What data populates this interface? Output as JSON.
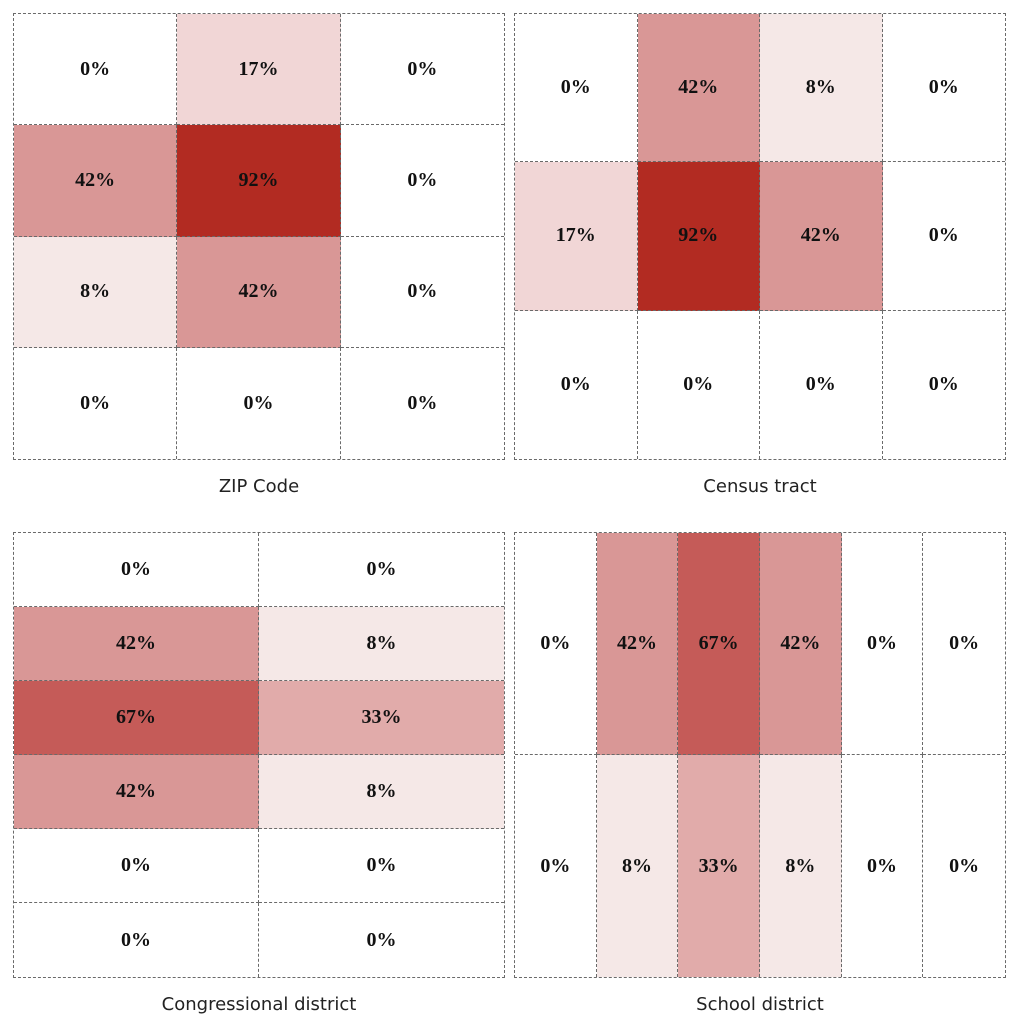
{
  "colors": {
    "v0": "#ffffff",
    "v8": "#f5e8e7",
    "v17": "#f1d6d6",
    "v33": "#e1abaa",
    "v42": "#d99796",
    "v67": "#c55b58",
    "v92": "#b22b22",
    "grid": "#6a6a6a",
    "text": "#111111"
  },
  "chart_data": [
    {
      "type": "heatmap",
      "title": "ZIP Code",
      "rows": 4,
      "cols": 3,
      "values": [
        [
          0,
          17,
          0
        ],
        [
          42,
          92,
          0
        ],
        [
          8,
          42,
          0
        ],
        [
          0,
          0,
          0
        ]
      ],
      "column_fill": false
    },
    {
      "type": "heatmap",
      "title": "Census tract",
      "rows": 3,
      "cols": 4,
      "values": [
        [
          0,
          42,
          8,
          0
        ],
        [
          17,
          92,
          42,
          0
        ],
        [
          0,
          0,
          0,
          0
        ]
      ],
      "column_fill": false
    },
    {
      "type": "heatmap",
      "title": "Congressional district",
      "rows": 6,
      "cols": 2,
      "values": [
        [
          0,
          0
        ],
        [
          42,
          8
        ],
        [
          67,
          33
        ],
        [
          42,
          8
        ],
        [
          0,
          0
        ],
        [
          0,
          0
        ]
      ],
      "column_fill": false
    },
    {
      "type": "heatmap",
      "title": "School district",
      "rows": 2,
      "cols": 6,
      "values": [
        [
          0,
          42,
          67,
          42,
          0,
          0
        ],
        [
          0,
          8,
          33,
          8,
          0,
          0
        ]
      ],
      "column_fill": true
    }
  ]
}
